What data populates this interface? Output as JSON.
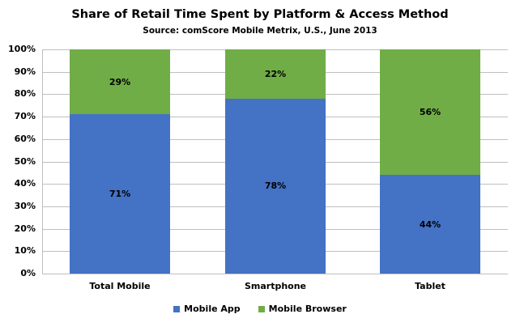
{
  "chart_data": {
    "type": "bar",
    "stacked": true,
    "title": "Share of Retail Time Spent by Platform & Access Method",
    "subtitle": "Source: comScore Mobile Metrix, U.S., June 2013",
    "categories": [
      "Total Mobile",
      "Smartphone",
      "Tablet"
    ],
    "series": [
      {
        "name": "Mobile App",
        "color": "#4472c4",
        "values": [
          71,
          78,
          44
        ],
        "labels": [
          "71%",
          "78%",
          "44%"
        ]
      },
      {
        "name": "Mobile Browser",
        "color": "#70ad47",
        "values": [
          29,
          22,
          56
        ],
        "labels": [
          "29%",
          "22%",
          "56%"
        ]
      }
    ],
    "xlabel": "",
    "ylabel": "",
    "ylim": [
      0,
      100
    ],
    "yticks": [
      "0%",
      "10%",
      "20%",
      "30%",
      "40%",
      "50%",
      "60%",
      "70%",
      "80%",
      "90%",
      "100%"
    ],
    "grid": true,
    "legend_position": "bottom"
  }
}
